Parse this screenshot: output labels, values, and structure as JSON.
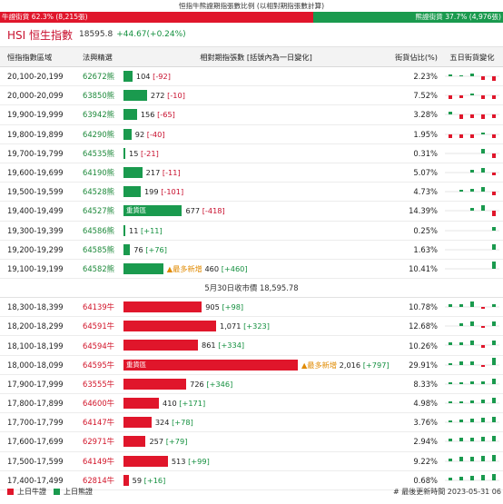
{
  "caption": "恒指牛熊證期指張數比例 (以相對期指張數計算)",
  "ratio": {
    "bull_label": "牛證街貨 62.3% (8,215張)",
    "bear_label": "熊證街貨 37.7% (4,976張)",
    "bull_pct": 62.3,
    "bear_pct": 37.7
  },
  "index": {
    "name": "HSI 恒生指數",
    "value": "18595.8",
    "change": "+44.67(+0.24%)"
  },
  "headers": {
    "range": "恒指指數區域",
    "code": "法興精選",
    "contracts": "相對期指張數 [括號內為一日變化]",
    "pct": "街貨佔比(%)",
    "spark": "五日街貨變化"
  },
  "colors": {
    "bull": "#e0162b",
    "bear": "#1a9a4e",
    "newest": "#e08a00"
  },
  "max_contracts": 2016,
  "bear_rows": [
    {
      "range": "20,100-20,199",
      "code": "62672熊",
      "value": 104,
      "label": "104",
      "chg": "[-92]",
      "dir": "neg",
      "pct": "2.23%",
      "spark": [
        0.2,
        0.1,
        0.3,
        -0.4,
        -0.5
      ],
      "tag": "",
      "flag": ""
    },
    {
      "range": "20,000-20,099",
      "code": "63850熊",
      "value": 272,
      "label": "272",
      "chg": "[-10]",
      "dir": "neg",
      "pct": "7.52%",
      "spark": [
        -0.4,
        -0.3,
        0.2,
        -0.4,
        -0.4
      ],
      "tag": "",
      "flag": ""
    },
    {
      "range": "19,900-19,999",
      "code": "63942熊",
      "value": 156,
      "label": "156",
      "chg": "[-65]",
      "dir": "neg",
      "pct": "3.28%",
      "spark": [
        0.3,
        -0.5,
        -0.4,
        -0.5,
        -0.4
      ],
      "tag": "",
      "flag": ""
    },
    {
      "range": "19,800-19,899",
      "code": "64290熊",
      "value": 92,
      "label": "92",
      "chg": "[-40]",
      "dir": "neg",
      "pct": "1.95%",
      "spark": [
        -0.4,
        -0.4,
        -0.4,
        0.2,
        -0.4
      ],
      "tag": "",
      "flag": ""
    },
    {
      "range": "19,700-19,799",
      "code": "64535熊",
      "value": 15,
      "label": "15",
      "chg": "[-21]",
      "dir": "neg",
      "pct": "0.31%",
      "spark": [
        0.0,
        0.0,
        0.0,
        0.5,
        -0.5
      ],
      "tag": "",
      "flag": ""
    },
    {
      "range": "19,600-19,699",
      "code": "64190熊",
      "value": 217,
      "label": "217",
      "chg": "[-11]",
      "dir": "neg",
      "pct": "5.07%",
      "spark": [
        0.0,
        0.0,
        0.3,
        0.5,
        -0.3
      ],
      "tag": "",
      "flag": ""
    },
    {
      "range": "19,500-19,599",
      "code": "64528熊",
      "value": 199,
      "label": "199",
      "chg": "[-101]",
      "dir": "neg",
      "pct": "4.73%",
      "spark": [
        0.0,
        0.2,
        0.3,
        0.5,
        -0.4
      ],
      "tag": "",
      "flag": ""
    },
    {
      "range": "19,400-19,499",
      "code": "64527熊",
      "value": 677,
      "label": "677",
      "chg": "[-418]",
      "dir": "neg",
      "pct": "14.39%",
      "spark": [
        0.0,
        0.0,
        0.3,
        0.6,
        -0.6
      ],
      "tag": "重貨區",
      "flag": ""
    },
    {
      "range": "19,300-19,399",
      "code": "64586熊",
      "value": 11,
      "label": "11",
      "chg": "[+11]",
      "dir": "pos",
      "pct": "0.25%",
      "spark": [
        0.0,
        0.0,
        0.0,
        0.0,
        0.4
      ],
      "tag": "",
      "flag": ""
    },
    {
      "range": "19,200-19,299",
      "code": "64585熊",
      "value": 76,
      "label": "76",
      "chg": "[+76]",
      "dir": "pos",
      "pct": "1.63%",
      "spark": [
        0.0,
        0.0,
        0.0,
        0.0,
        0.6
      ],
      "tag": "",
      "flag": ""
    },
    {
      "range": "19,100-19,199",
      "code": "64582熊",
      "value": 460,
      "label": "460",
      "chg": "[+460]",
      "dir": "pos",
      "pct": "10.41%",
      "spark": [
        0.0,
        0.0,
        0.0,
        0.0,
        0.8
      ],
      "tag": "",
      "flag": "▲最多新增"
    }
  ],
  "separator": "5月30日收市價 18,595.78",
  "bull_rows": [
    {
      "range": "18,300-18,399",
      "code": "64139牛",
      "value": 905,
      "label": "905",
      "chg": "[+98]",
      "dir": "pos",
      "pct": "10.78%",
      "spark": [
        0.3,
        0.3,
        0.6,
        -0.2,
        0.3
      ],
      "tag": "",
      "flag": ""
    },
    {
      "range": "18,200-18,299",
      "code": "64591牛",
      "value": 1071,
      "label": "1,071",
      "chg": "[+323]",
      "dir": "pos",
      "pct": "12.68%",
      "spark": [
        0.0,
        0.3,
        0.5,
        -0.2,
        0.5
      ],
      "tag": "",
      "flag": ""
    },
    {
      "range": "18,100-18,199",
      "code": "64594牛",
      "value": 861,
      "label": "861",
      "chg": "[+334]",
      "dir": "pos",
      "pct": "10.26%",
      "spark": [
        0.3,
        0.3,
        0.5,
        -0.3,
        0.5
      ],
      "tag": "",
      "flag": ""
    },
    {
      "range": "18,000-18,099",
      "code": "64595牛",
      "value": 2016,
      "label": "2,016",
      "chg": "[+797]",
      "dir": "pos",
      "pct": "29.91%",
      "spark": [
        0.2,
        0.4,
        0.4,
        -0.2,
        0.8
      ],
      "tag": "重貨區",
      "flag": "▲最多新增"
    },
    {
      "range": "17,900-17,999",
      "code": "63555牛",
      "value": 726,
      "label": "726",
      "chg": "[+346]",
      "dir": "pos",
      "pct": "8.33%",
      "spark": [
        0.2,
        0.2,
        0.3,
        0.3,
        0.6
      ],
      "tag": "",
      "flag": ""
    },
    {
      "range": "17,800-17,899",
      "code": "64600牛",
      "value": 410,
      "label": "410",
      "chg": "[+171]",
      "dir": "pos",
      "pct": "4.98%",
      "spark": [
        0.2,
        0.2,
        0.3,
        0.4,
        0.6
      ],
      "tag": "",
      "flag": ""
    },
    {
      "range": "17,700-17,799",
      "code": "64147牛",
      "value": 324,
      "label": "324",
      "chg": "[+78]",
      "dir": "pos",
      "pct": "3.76%",
      "spark": [
        0.2,
        0.3,
        0.4,
        0.5,
        0.6
      ],
      "tag": "",
      "flag": ""
    },
    {
      "range": "17,600-17,699",
      "code": "62971牛",
      "value": 257,
      "label": "257",
      "chg": "[+79]",
      "dir": "pos",
      "pct": "2.94%",
      "spark": [
        0.3,
        0.4,
        0.4,
        0.5,
        0.6
      ],
      "tag": "",
      "flag": ""
    },
    {
      "range": "17,500-17,599",
      "code": "64149牛",
      "value": 513,
      "label": "513",
      "chg": "[+99]",
      "dir": "pos",
      "pct": "9.22%",
      "spark": [
        0.3,
        0.5,
        0.5,
        0.6,
        0.7
      ],
      "tag": "",
      "flag": ""
    },
    {
      "range": "17,400-17,499",
      "code": "62814牛",
      "value": 59,
      "label": "59",
      "chg": "[+16]",
      "dir": "pos",
      "pct": "0.68%",
      "spark": [
        0.3,
        0.4,
        0.5,
        0.6,
        0.7
      ],
      "tag": "",
      "flag": ""
    }
  ],
  "legend": {
    "bull": "上日牛證",
    "bear": "上日熊證"
  },
  "updated": "# 最後更新時間 2023-05-31 06"
}
